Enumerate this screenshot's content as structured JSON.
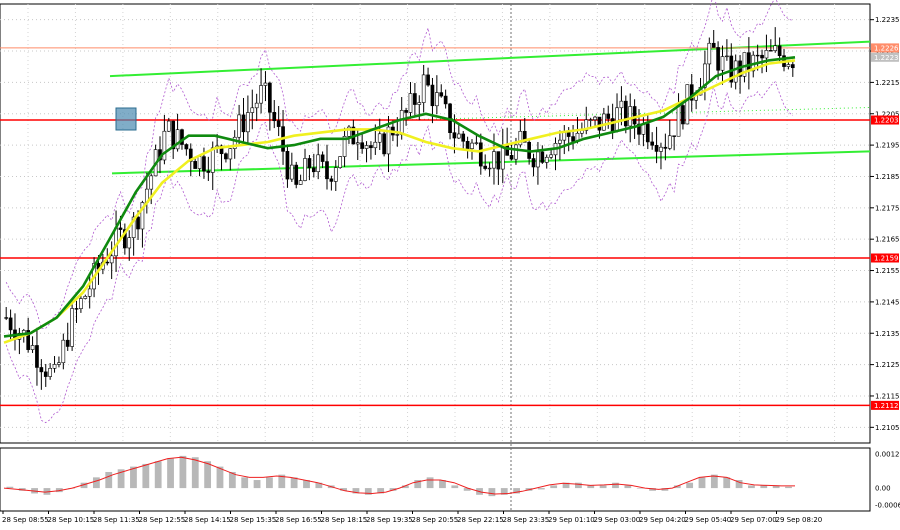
{
  "chart_data": {
    "type": "candlestick",
    "price_axis": {
      "ylim": [
        1.21,
        1.224
      ],
      "ticks": [
        "1.2235",
        "1.2225",
        "1.2215",
        "1.2205",
        "1.2195",
        "1.2185",
        "1.2175",
        "1.2165",
        "1.2155",
        "1.2145",
        "1.2135",
        "1.2125",
        "1.2115",
        "1.2105"
      ],
      "tick_values": [
        1.2235,
        1.2225,
        1.2215,
        1.2205,
        1.2195,
        1.2185,
        1.2175,
        1.2165,
        1.2155,
        1.2145,
        1.2135,
        1.2125,
        1.2115,
        1.2105
      ]
    },
    "time_axis": {
      "labels": [
        "28 Sep 08:55",
        "28 Sep 10:15",
        "28 Sep 11:35",
        "28 Sep 12:55",
        "28 Sep 14:15",
        "28 Sep 15:35",
        "28 Sep 16:55",
        "28 Sep 18:15",
        "28 Sep 19:35",
        "28 Sep 20:55",
        "28 Sep 22:15",
        "28 Sep 23:35",
        "29 Sep 01:10",
        "29 Sep 03:00",
        "29 Sep 04:20",
        "29 Sep 05:40",
        "29 Sep 07:00",
        "29 Sep 08:20"
      ]
    },
    "price_levels": [
      {
        "label": "1.2226",
        "value": 1.2226,
        "color": "#ff8c69"
      },
      {
        "label": "1.2223",
        "value": 1.2223,
        "color": "#c0c0c0"
      },
      {
        "label": "1.2203",
        "value": 1.2203,
        "color": "#ff0000"
      },
      {
        "label": "1.2159",
        "value": 1.2159,
        "color": "#ff0000"
      },
      {
        "label": "1.2112",
        "value": 1.2112,
        "color": "#ff0000"
      }
    ],
    "series": {
      "close": [
        1.214,
        1.2135,
        1.2128,
        1.212,
        1.2138,
        1.2148,
        1.2158,
        1.2165,
        1.217,
        1.2185,
        1.22,
        1.2195,
        1.219,
        1.2192,
        1.2196,
        1.2205,
        1.2212,
        1.2198,
        1.218,
        1.219,
        1.2185,
        1.2195,
        1.22,
        1.2192,
        1.22,
        1.2205,
        1.2215,
        1.2208,
        1.2198,
        1.2195,
        1.2192,
        1.219,
        1.2195,
        1.2192,
        1.2196,
        1.2198,
        1.22,
        1.2202,
        1.2205,
        1.2203,
        1.22,
        1.2196,
        1.2205,
        1.2215,
        1.2225,
        1.2218,
        1.222,
        1.2222,
        1.2224,
        1.2223
      ],
      "ma_green": [
        1.2134,
        1.2135,
        1.214,
        1.215,
        1.2165,
        1.218,
        1.2192,
        1.2198,
        1.2198,
        1.2196,
        1.2194,
        1.2195,
        1.2197,
        1.2197,
        1.22,
        1.2203,
        1.2205,
        1.2203,
        1.2198,
        1.2194,
        1.2193,
        1.2194,
        1.2197,
        1.2199,
        1.2201,
        1.2204,
        1.221,
        1.2217,
        1.222,
        1.2222,
        1.2223
      ],
      "ma_yellow": [
        1.2132,
        1.2135,
        1.214,
        1.2148,
        1.216,
        1.2172,
        1.2183,
        1.219,
        1.2194,
        1.2195,
        1.2196,
        1.2198,
        1.2199,
        1.22,
        1.22,
        1.2199,
        1.2196,
        1.2194,
        1.2193,
        1.2195,
        1.2197,
        1.2199,
        1.22,
        1.2202,
        1.2204,
        1.2206,
        1.221,
        1.2214,
        1.2218,
        1.2221,
        1.2222
      ]
    },
    "oscillator": {
      "ticks": [
        "0.00127",
        "0.00",
        "-0.00063"
      ],
      "tick_values": [
        0.00127,
        0.0,
        -0.00063
      ],
      "ylim": [
        -0.00063,
        0.00127
      ],
      "histogram": [
        5e-05,
        -0.0001,
        -0.0002,
        -0.00025,
        -0.00015,
        0.0,
        0.0002,
        0.0004,
        0.0006,
        0.0007,
        0.0008,
        0.0009,
        0.001,
        0.0011,
        0.0012,
        0.00115,
        0.001,
        0.0008,
        0.0006,
        0.0004,
        0.0003,
        0.0004,
        0.0005,
        0.0004,
        0.0003,
        0.0002,
        0.0001,
        -0.0001,
        -0.0002,
        -0.00025,
        -0.0002,
        -0.0001,
        0.0001,
        0.0003,
        0.0004,
        0.0003,
        0.0001,
        -0.0001,
        -0.00025,
        -0.0003,
        -0.00025,
        -0.0002,
        -0.0001,
        -5e-05,
        0.0001,
        0.0002,
        0.0002,
        0.0001,
        0.0001,
        0.0002,
        0.0001,
        0.0,
        -0.0001,
        -0.0001,
        0.0001,
        0.0002,
        0.0004,
        0.0005,
        0.0004,
        0.0003,
        0.0001,
        0.0001,
        0.0001,
        5e-05
      ],
      "signal": [
        0.0,
        -5e-05,
        -0.0001,
        -0.00015,
        -0.0001,
        0.0,
        0.00015,
        0.0003,
        0.0005,
        0.00065,
        0.0008,
        0.00095,
        0.0011,
        0.00115,
        0.00105,
        0.0009,
        0.0007,
        0.0005,
        0.0004,
        0.0004,
        0.00045,
        0.0004,
        0.0003,
        0.0002,
        5e-05,
        -0.0001,
        -0.00018,
        -0.0002,
        -0.00015,
        0.0,
        0.0002,
        0.0003,
        0.0003,
        0.0002,
        0.0,
        -0.00015,
        -0.00022,
        -0.0002,
        -0.00012,
        0.0,
        0.00012,
        0.00018,
        0.00015,
        0.0001,
        0.00012,
        0.00015,
        0.0001,
        0.0,
        -5e-05,
        0.0,
        0.0002,
        0.0004,
        0.00045,
        0.0004,
        0.0002,
        0.00012,
        0.0001,
        8e-05,
        8e-05
      ]
    }
  }
}
